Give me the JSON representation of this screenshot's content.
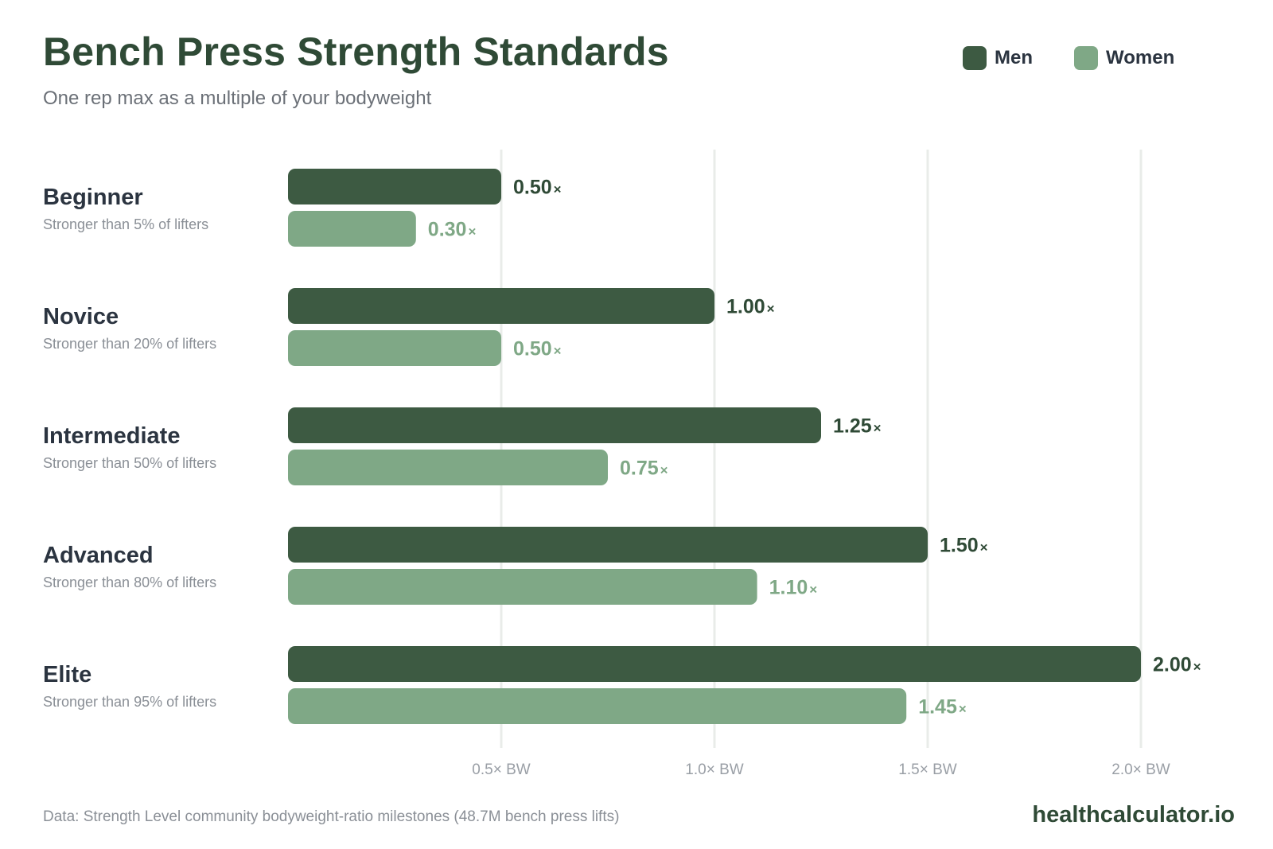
{
  "header": {
    "title": "Bench Press Strength Standards",
    "subtitle": "One rep max as a multiple of your bodyweight"
  },
  "legend": {
    "men": {
      "label": "Men",
      "color": "#3d5a42"
    },
    "women": {
      "label": "Women",
      "color": "#7fa886"
    }
  },
  "footer": {
    "source": "Data: Strength Level community bodyweight-ratio milestones (48.7M bench press lifts)",
    "brand": "healthcalculator.io"
  },
  "chart_data": {
    "type": "bar",
    "orientation": "horizontal",
    "categories": [
      "Beginner",
      "Novice",
      "Intermediate",
      "Advanced",
      "Elite"
    ],
    "category_subtitles": [
      "Stronger than 5% of lifters",
      "Stronger than 20% of lifters",
      "Stronger than 50% of lifters",
      "Stronger than 80% of lifters",
      "Stronger than 95% of lifters"
    ],
    "series": [
      {
        "name": "Men",
        "values": [
          0.5,
          1.0,
          1.25,
          1.5,
          2.0
        ],
        "labels": [
          "0.50",
          "1.00",
          "1.25",
          "1.50",
          "2.00"
        ],
        "color": "#3d5a42",
        "label_color": "#2f4a36"
      },
      {
        "name": "Women",
        "values": [
          0.3,
          0.5,
          0.75,
          1.1,
          1.45
        ],
        "labels": [
          "0.30",
          "0.50",
          "0.75",
          "1.10",
          "1.45"
        ],
        "color": "#7fa886",
        "label_color": "#7fa886"
      }
    ],
    "value_suffix": "×",
    "xlim": [
      0,
      2.0
    ],
    "xticks": [
      0.5,
      1.0,
      1.5,
      2.0
    ],
    "xtick_labels": [
      "0.5× BW",
      "1.0× BW",
      "1.5× BW",
      "2.0× BW"
    ],
    "grid": true,
    "gridline_color": "#e9ece9",
    "legend_position": "top-right"
  }
}
